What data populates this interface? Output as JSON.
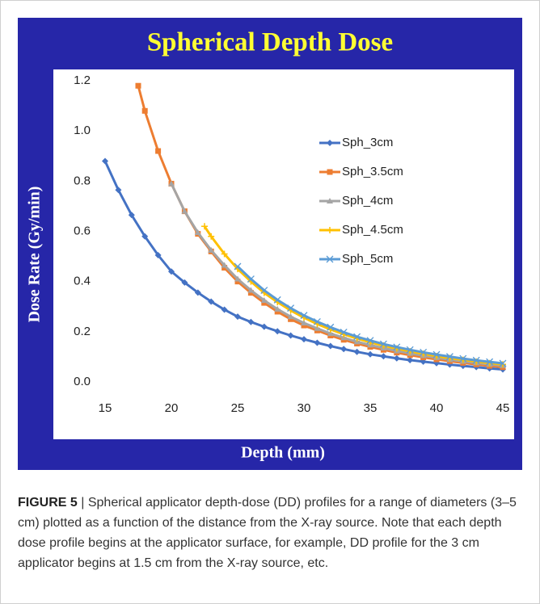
{
  "chart_data": {
    "type": "line",
    "title": "Spherical Depth Dose",
    "x_label": "Depth (mm)",
    "y_label": "Dose Rate (Gy/min)",
    "xlim": [
      15,
      45
    ],
    "xticks": [
      15,
      20,
      25,
      30,
      35,
      40,
      45
    ],
    "ylim": [
      0,
      1.2
    ],
    "yticks": [
      {
        "value": 0,
        "label": "0.0"
      },
      0.2,
      0.4,
      0.6,
      0.8,
      {
        "value": 1,
        "label": "1.0"
      },
      1.2
    ],
    "legend": "upper right",
    "series": [
      {
        "name": "Sph_3cm",
        "color": "#4472c4",
        "marker": "diamond",
        "x": [
          15,
          16,
          17,
          18,
          19,
          20,
          21,
          22,
          23,
          24,
          25,
          26,
          27,
          28,
          29,
          30,
          31,
          32,
          33,
          34,
          35,
          36,
          37,
          38,
          39,
          40,
          41,
          42,
          43,
          44,
          45
        ],
        "values": [
          0.88,
          0.765,
          0.665,
          0.58,
          0.505,
          0.44,
          0.396,
          0.356,
          0.32,
          0.288,
          0.26,
          0.239,
          0.22,
          0.202,
          0.185,
          0.17,
          0.156,
          0.143,
          0.131,
          0.12,
          0.11,
          0.102,
          0.094,
          0.087,
          0.081,
          0.075,
          0.069,
          0.064,
          0.059,
          0.054,
          0.05
        ]
      },
      {
        "name": "Sph_3.5cm",
        "color": "#ed7d31",
        "marker": "square",
        "x": [
          17.5,
          18,
          19,
          20,
          21,
          22,
          23,
          24,
          25,
          26,
          27,
          28,
          29,
          30,
          31,
          32,
          33,
          34,
          35,
          36,
          37,
          38,
          39,
          40,
          41,
          42,
          43,
          44,
          45
        ],
        "values": [
          1.18,
          1.08,
          0.92,
          0.79,
          0.68,
          0.59,
          0.52,
          0.455,
          0.4,
          0.355,
          0.315,
          0.28,
          0.25,
          0.225,
          0.205,
          0.185,
          0.168,
          0.153,
          0.14,
          0.128,
          0.117,
          0.107,
          0.098,
          0.09,
          0.083,
          0.076,
          0.07,
          0.064,
          0.059
        ]
      },
      {
        "name": "Sph_4cm",
        "color": "#a5a5a5",
        "marker": "triangle",
        "x": [
          20,
          21,
          22,
          23,
          24,
          25,
          26,
          27,
          28,
          29,
          30,
          31,
          32,
          33,
          34,
          35,
          36,
          37,
          38,
          39,
          40,
          41,
          42,
          43,
          44,
          45
        ],
        "values": [
          0.79,
          0.68,
          0.595,
          0.525,
          0.465,
          0.41,
          0.365,
          0.325,
          0.29,
          0.26,
          0.235,
          0.213,
          0.193,
          0.176,
          0.16,
          0.147,
          0.135,
          0.124,
          0.114,
          0.105,
          0.097,
          0.089,
          0.082,
          0.076,
          0.07,
          0.065
        ]
      },
      {
        "name": "Sph_4.5cm",
        "color": "#ffc000",
        "marker": "plus",
        "x": [
          22.5,
          23,
          24,
          25,
          26,
          27,
          28,
          29,
          30,
          31,
          32,
          33,
          34,
          35,
          36,
          37,
          38,
          39,
          40,
          41,
          42,
          43,
          44,
          45
        ],
        "values": [
          0.62,
          0.58,
          0.51,
          0.45,
          0.4,
          0.355,
          0.318,
          0.285,
          0.256,
          0.231,
          0.209,
          0.19,
          0.173,
          0.158,
          0.145,
          0.133,
          0.122,
          0.112,
          0.103,
          0.095,
          0.088,
          0.081,
          0.075,
          0.07
        ]
      },
      {
        "name": "Sph_5cm",
        "color": "#5b9bd5",
        "marker": "x",
        "x": [
          25,
          26,
          27,
          28,
          29,
          30,
          31,
          32,
          33,
          34,
          35,
          36,
          37,
          38,
          39,
          40,
          41,
          42,
          43,
          44,
          45
        ],
        "values": [
          0.46,
          0.41,
          0.365,
          0.327,
          0.294,
          0.265,
          0.24,
          0.218,
          0.198,
          0.18,
          0.165,
          0.151,
          0.139,
          0.128,
          0.118,
          0.109,
          0.101,
          0.093,
          0.086,
          0.08,
          0.074
        ]
      }
    ]
  },
  "caption": {
    "label": "FIGURE 5",
    "text": "| Spherical applicator depth-dose (DD) profiles for a range of diameters (3–5 cm) plotted as a function of the distance from the X-ray source. Note that each depth dose profile begins at the applicator surface, for example, DD profile for the 3 cm applicator begins at 1.5 cm from the X-ray source, etc."
  }
}
